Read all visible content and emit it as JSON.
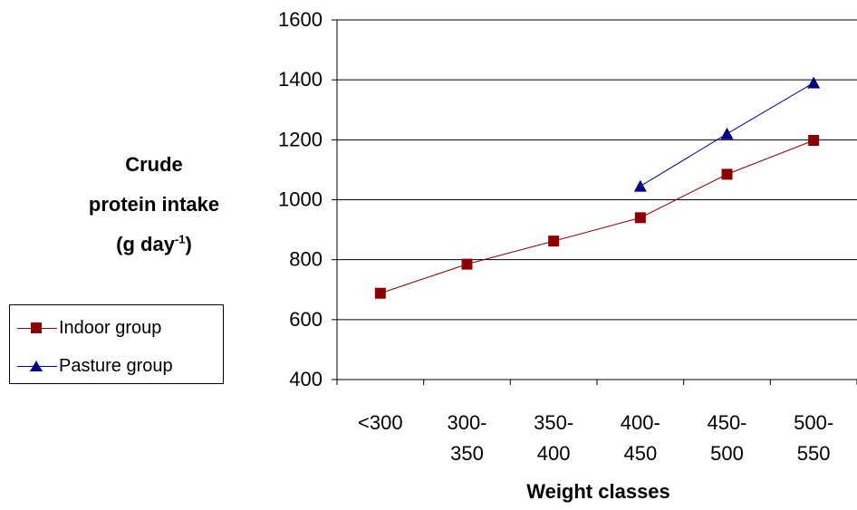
{
  "chart_data": {
    "type": "line",
    "categories": [
      "<300",
      "300-\n350",
      "350-\n400",
      "400-\n450",
      "450-\n500",
      "500-\n550"
    ],
    "series": [
      {
        "name": "Indoor group",
        "color": "#8b0000",
        "marker": "square",
        "values": [
          688,
          785,
          862,
          940,
          1085,
          1198
        ]
      },
      {
        "name": "Pasture group",
        "color": "#000080",
        "marker": "triangle",
        "values": [
          null,
          null,
          null,
          1045,
          1220,
          1390
        ]
      }
    ],
    "ylim": [
      400,
      1600
    ],
    "yticks": [
      400,
      600,
      800,
      1000,
      1200,
      1400,
      1600
    ],
    "grid": true,
    "legend_position": "left",
    "ylabel_lines": [
      "Crude",
      "protein intake",
      "(g day",
      "-1",
      ")"
    ],
    "xlabel": "Weight classes"
  }
}
